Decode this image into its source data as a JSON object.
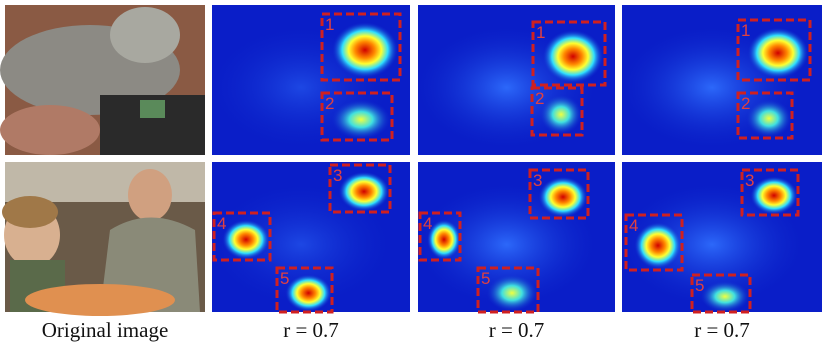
{
  "captions": [
    "Original image",
    "r = 0.7",
    "r = 0.7",
    "r = 0.7"
  ],
  "rows": [
    {
      "panels": [
        {
          "boxes": [
            "1",
            "2"
          ]
        },
        {
          "boxes": [
            "1",
            "2"
          ]
        },
        {
          "boxes": [
            "1",
            "2"
          ]
        }
      ]
    },
    {
      "panels": [
        {
          "boxes": [
            "3",
            "4",
            "5"
          ]
        },
        {
          "boxes": [
            "3",
            "4",
            "5"
          ]
        },
        {
          "boxes": [
            "3",
            "4",
            "5"
          ]
        }
      ]
    }
  ]
}
